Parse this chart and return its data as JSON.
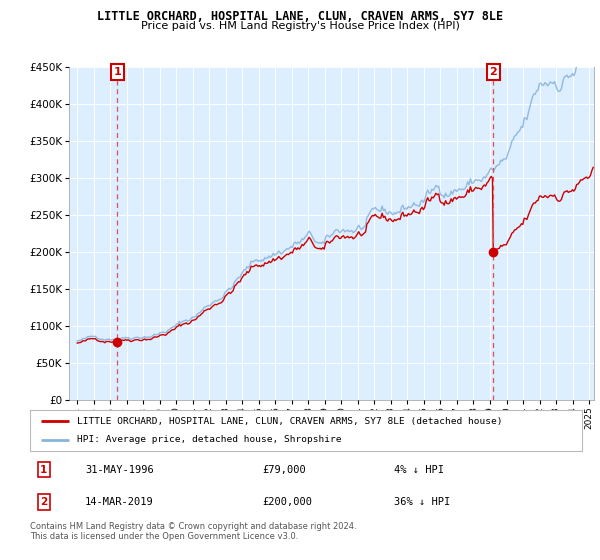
{
  "title": "LITTLE ORCHARD, HOSPITAL LANE, CLUN, CRAVEN ARMS, SY7 8LE",
  "subtitle": "Price paid vs. HM Land Registry's House Price Index (HPI)",
  "legend_line1": "LITTLE ORCHARD, HOSPITAL LANE, CLUN, CRAVEN ARMS, SY7 8LE (detached house)",
  "legend_line2": "HPI: Average price, detached house, Shropshire",
  "annotation1_date": "31-MAY-1996",
  "annotation1_price": "£79,000",
  "annotation1_hpi": "4% ↓ HPI",
  "annotation2_date": "14-MAR-2019",
  "annotation2_price": "£200,000",
  "annotation2_hpi": "36% ↓ HPI",
  "footer": "Contains HM Land Registry data © Crown copyright and database right 2024.\nThis data is licensed under the Open Government Licence v3.0.",
  "hpi_color": "#89b4d9",
  "price_color": "#cc0000",
  "dashed_color": "#e05050",
  "marker_color": "#cc0000",
  "annotation_box_color": "#cc0000",
  "background_plot": "#ddeeff",
  "ylim": [
    0,
    450000
  ],
  "yticks": [
    0,
    50000,
    100000,
    150000,
    200000,
    250000,
    300000,
    350000,
    400000,
    450000
  ],
  "xlim_start": 1993.5,
  "xlim_end": 2025.3,
  "sale1_year": 1996.42,
  "sale1_value": 79000,
  "sale2_year": 2019.2,
  "sale2_value": 200000,
  "xtick_years": [
    1994,
    1995,
    1996,
    1997,
    1998,
    1999,
    2000,
    2001,
    2002,
    2003,
    2004,
    2005,
    2006,
    2007,
    2008,
    2009,
    2010,
    2011,
    2012,
    2013,
    2014,
    2015,
    2016,
    2017,
    2018,
    2019,
    2020,
    2021,
    2022,
    2023,
    2024,
    2025
  ]
}
